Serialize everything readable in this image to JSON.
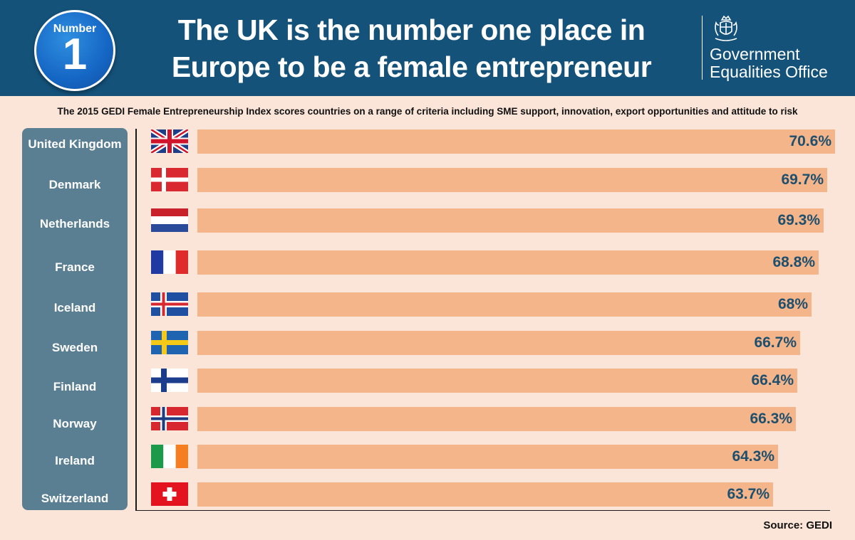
{
  "header": {
    "badge_label": "Number",
    "badge_number": "1",
    "title_line1": "The UK is the number one place in",
    "title_line2": "Europe to be a female entrepreneur",
    "org_line1": "Government",
    "org_line2": "Equalities Office",
    "background_color": "#14527a"
  },
  "chart_data": {
    "type": "bar",
    "orientation": "horizontal",
    "title": "The UK is the number one place in Europe to be a female entrepreneur",
    "subtitle": "The 2015 GEDI Female Entrepreneurship Index scores countries on a range of criteria including SME support, innovation, export opportunities and attitude to risk",
    "categories": [
      "United Kingdom",
      "Denmark",
      "Netherlands",
      "France",
      "Iceland",
      "Sweden",
      "Finland",
      "Norway",
      "Ireland",
      "Switzerland"
    ],
    "values": [
      70.6,
      69.7,
      69.3,
      68.8,
      68,
      66.7,
      66.4,
      66.3,
      64.3,
      63.7
    ],
    "value_labels": [
      "70.6%",
      "69.7%",
      "69.3%",
      "68.8%",
      "68%",
      "66.7%",
      "66.4%",
      "66.3%",
      "64.3%",
      "63.7%"
    ],
    "flags": [
      "uk-flag-icon",
      "denmark-flag-icon",
      "netherlands-flag-icon",
      "france-flag-icon",
      "iceland-flag-icon",
      "sweden-flag-icon",
      "finland-flag-icon",
      "norway-flag-icon",
      "ireland-flag-icon",
      "switzerland-flag-icon"
    ],
    "bar_color": "#f5b58a",
    "label_color": "#1d4f6e",
    "xlim": [
      0,
      70.6
    ],
    "grid": false,
    "legend": "none"
  },
  "source": "Source: GEDI"
}
